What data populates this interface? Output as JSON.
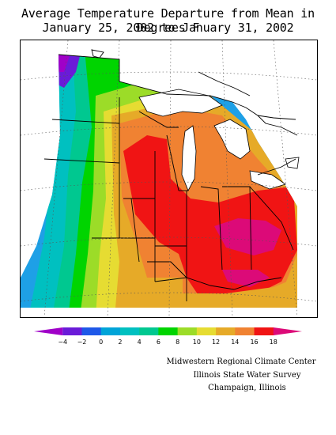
{
  "title": {
    "line1": "Average Temperature Departure from Mean in Degrees F",
    "line2": "January 25, 2002 to January 31, 2002"
  },
  "map": {
    "region": "Midwestern United States",
    "lowest_anomaly_area": "far northwest (North Dakota / Manitoba)",
    "highest_anomaly_area": "Ohio Valley and southern Michigan"
  },
  "legend": {
    "ticks": [
      "-4",
      "-2",
      "0",
      "2",
      "4",
      "6",
      "8",
      "10",
      "12",
      "14",
      "16",
      "18"
    ],
    "colors": [
      "#a000c8",
      "#6a1bd8",
      "#1e58e8",
      "#00a4d8",
      "#00c0c0",
      "#00c890",
      "#00d400",
      "#9cdc28",
      "#e6dc32",
      "#e6aa28",
      "#f08232",
      "#f01414",
      "#dc0a78"
    ]
  },
  "credits": {
    "line1": "Midwestern Regional Climate Center",
    "line2": "Illinois State Water Survey",
    "line3": "Champaign, Illinois"
  }
}
